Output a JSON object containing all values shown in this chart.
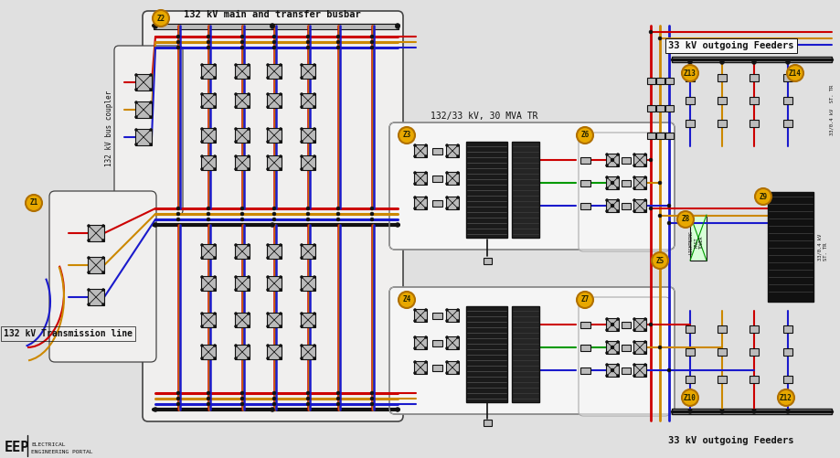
{
  "bg_color": "#e0e0e0",
  "title_main_busbar": "132 kV main and transfer busbar",
  "title_33kv_top": "33 kV outgoing Feeders",
  "title_33kv_bot": "33 kV outgoing Feeders",
  "title_transformer": "132/33 kV, 30 MVA TR",
  "title_transmission": "132 kV Transmission line",
  "title_bus_coupler": "132 kV bus coupler",
  "colors": {
    "red": "#cc0000",
    "blue": "#1a1acc",
    "yellow": "#cc8800",
    "green": "#009900",
    "black": "#111111",
    "dark_gray": "#444444",
    "light_gray": "#bbbbbb",
    "med_gray": "#888888",
    "white": "#f8f8f8",
    "panel_bg": "#f0efee",
    "zone_bg": "#e8a800",
    "zone_border": "#b07000"
  },
  "figsize": [
    9.2,
    5.01
  ],
  "dpi": 100
}
